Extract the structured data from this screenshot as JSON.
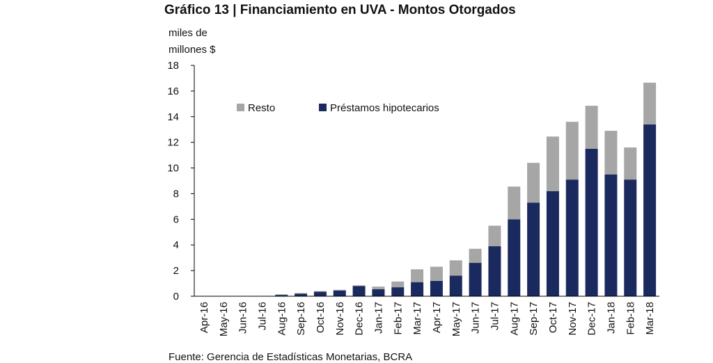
{
  "title": "Gráfico 13 | Financiamiento en UVA - Montos Otorgados",
  "source_note": "Fuente: Gerencia de Estadísticas Monetarias, BCRA",
  "colors": {
    "resto": "#a6a6a6",
    "prestamos": "#1b2a5e",
    "axis": "#000000"
  },
  "chart_data": {
    "type": "bar",
    "stacked": true,
    "ylabel": "miles de millones $",
    "ylabel_lines": [
      "miles de",
      "millones $"
    ],
    "ylim": [
      0,
      18
    ],
    "yticks": [
      0,
      2,
      4,
      6,
      8,
      10,
      12,
      14,
      16,
      18
    ],
    "grid": false,
    "legend_position": "top-left",
    "categories": [
      "Apr-16",
      "May-16",
      "Jun-16",
      "Jul-16",
      "Aug-16",
      "Sep-16",
      "Oct-16",
      "Nov-16",
      "Dec-16",
      "Jan-17",
      "Feb-17",
      "Mar-17",
      "Apr-17",
      "May-17",
      "Jun-17",
      "Jul-17",
      "Aug-17",
      "Sep-17",
      "Oct-17",
      "Nov-17",
      "Dec-17",
      "Jan-18",
      "Feb-18",
      "Mar-18"
    ],
    "series": [
      {
        "name": "Préstamos hipotecarios",
        "color": "#1b2a5e",
        "values": [
          0,
          0,
          0,
          0,
          0.1,
          0.2,
          0.35,
          0.45,
          0.8,
          0.55,
          0.7,
          1.1,
          1.2,
          1.6,
          2.6,
          3.9,
          6.0,
          7.3,
          8.2,
          9.1,
          11.5,
          9.5,
          9.1,
          13.4
        ]
      },
      {
        "name": "Resto",
        "color": "#a6a6a6",
        "values": [
          0,
          0.02,
          0.02,
          0.03,
          0.05,
          0.05,
          0.05,
          0.05,
          0.05,
          0.2,
          0.45,
          1.0,
          1.1,
          1.2,
          1.1,
          1.6,
          2.55,
          3.1,
          4.25,
          4.5,
          3.35,
          3.4,
          2.5,
          3.25
        ]
      }
    ]
  }
}
